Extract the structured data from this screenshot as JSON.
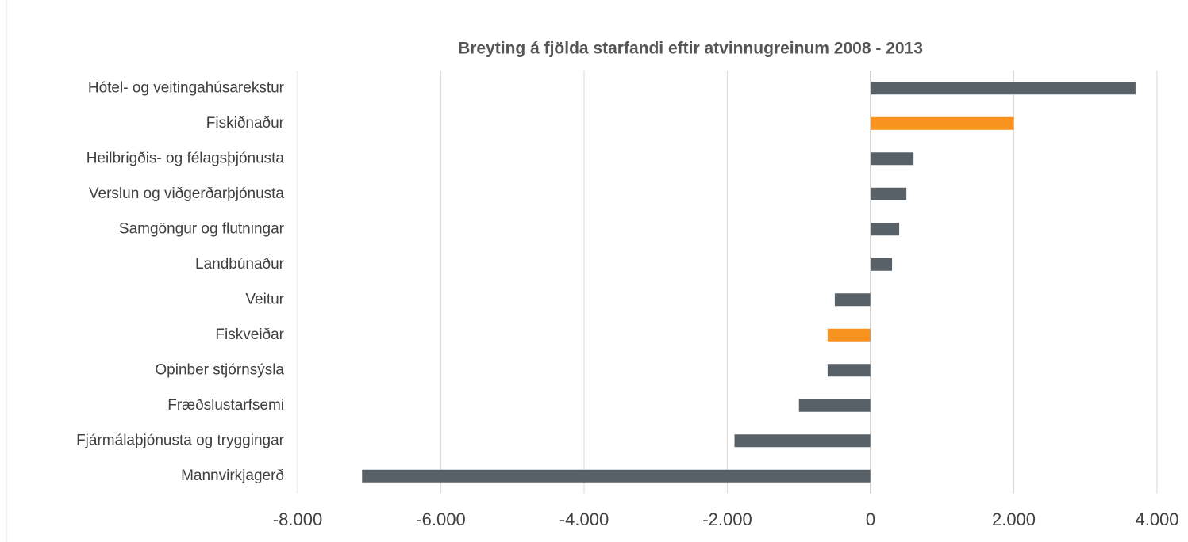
{
  "chart_data": {
    "type": "bar",
    "orientation": "horizontal",
    "title": "Breyting á fjölda starfandi eftir atvinnugreinum 2008 - 2013",
    "categories": [
      "Hótel- og veitingahúsarekstur",
      "Fiskiðnaður",
      "Heilbrigðis- og félagsþjónusta",
      "Verslun og viðgerðarþjónusta",
      "Samgöngur og flutningar",
      "Landbúnaður",
      "Veitur",
      "Fiskveiðar",
      "Opinber stjórnsýsla",
      "Fræðslustarfsemi",
      "Fjármálaþjónusta og tryggingar",
      "Mannvirkjagerð"
    ],
    "values": [
      3700,
      2000,
      600,
      500,
      400,
      300,
      -500,
      -600,
      -600,
      -1000,
      -1900,
      -7100
    ],
    "colors": [
      "#596168",
      "#f7931e",
      "#596168",
      "#596168",
      "#596168",
      "#596168",
      "#596168",
      "#f7931e",
      "#596168",
      "#596168",
      "#596168",
      "#596168"
    ],
    "xlim": [
      -8000,
      4000
    ],
    "xticks": [
      {
        "value": -8000,
        "label": "-8.000"
      },
      {
        "value": -6000,
        "label": "-6.000"
      },
      {
        "value": -4000,
        "label": "-4.000"
      },
      {
        "value": -2000,
        "label": "-2.000"
      },
      0,
      {
        "value": 2000,
        "label": "2.000"
      },
      {
        "value": 4000,
        "label": "4.000"
      }
    ],
    "grid": true
  }
}
